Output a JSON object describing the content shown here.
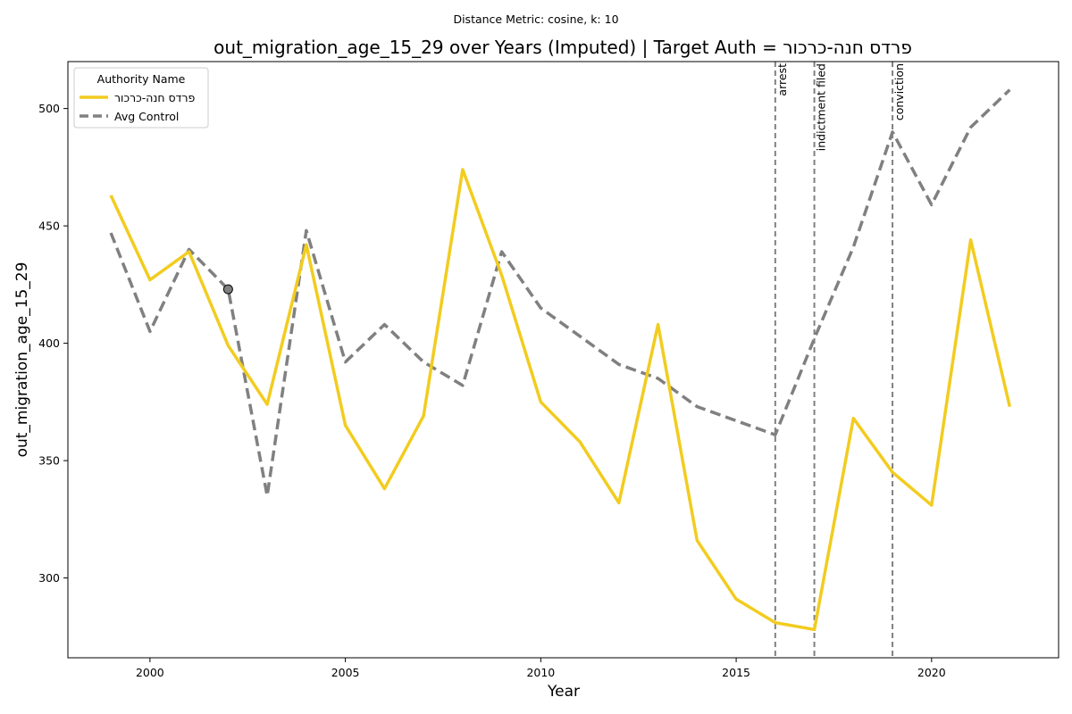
{
  "suptitle": "Distance Metric: cosine, k: 10",
  "chart_data": {
    "type": "line",
    "title": "out_migration_age_15_29 over Years (Imputed) | Target Auth = פרדס חנה-כרכור",
    "xlabel": "Year",
    "ylabel": "out_migration_age_15_29",
    "xlim": [
      1997.9,
      2023.25
    ],
    "ylim": [
      266,
      520
    ],
    "xticks": [
      2000,
      2005,
      2010,
      2015,
      2020
    ],
    "yticks": [
      300,
      350,
      400,
      450,
      500
    ],
    "grid": false,
    "legend": {
      "title": "Authority Name",
      "position": "top-left"
    },
    "x": [
      1999,
      2000,
      2001,
      2002,
      2003,
      2004,
      2005,
      2006,
      2007,
      2008,
      2009,
      2010,
      2011,
      2012,
      2013,
      2014,
      2015,
      2016,
      2017,
      2018,
      2019,
      2020,
      2021,
      2022
    ],
    "series": [
      {
        "name": "פרדס חנה-כרכור",
        "color": "#f2cc1f",
        "style": "solid",
        "values": [
          463,
          427,
          439,
          399,
          374,
          442,
          365,
          338,
          369,
          474,
          429,
          375,
          358,
          332,
          408,
          316,
          291,
          281,
          278,
          368,
          345,
          331,
          444,
          373
        ]
      },
      {
        "name": "Avg Control",
        "color": "#808080",
        "style": "dashed",
        "values": [
          447,
          405,
          440,
          423,
          335,
          448,
          392,
          408,
          392,
          382,
          439,
          415,
          403,
          391,
          385,
          373,
          367,
          361,
          402,
          441,
          490,
          459,
          492,
          508
        ]
      }
    ],
    "marker": {
      "x": 2002,
      "y": 423,
      "color": "#808080"
    },
    "events": [
      {
        "x": 2016,
        "label": "arrest"
      },
      {
        "x": 2017,
        "label": "indictment filed"
      },
      {
        "x": 2019,
        "label": "conviction"
      }
    ]
  }
}
